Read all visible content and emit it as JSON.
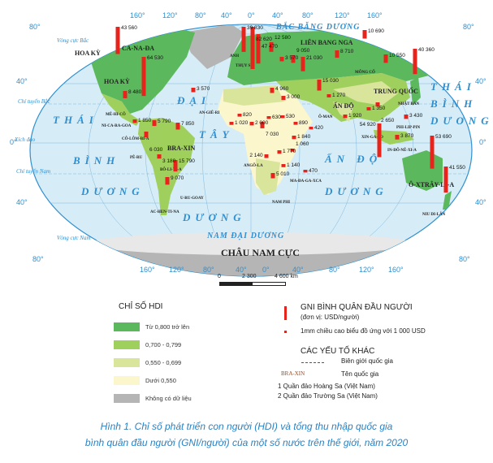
{
  "map": {
    "meridian_labels_top": [
      "160°",
      "120°",
      "80°",
      "40°",
      "0°",
      "40°",
      "80°",
      "120°",
      "160°"
    ],
    "meridian_labels_bottom": [
      "160°",
      "120°",
      "80°",
      "40°",
      "0°",
      "40°",
      "80°",
      "120°",
      "160°"
    ],
    "parallel_labels_left": [
      "80°",
      "40°",
      "0°",
      "40°",
      "80°"
    ],
    "parallel_labels_right": [
      "80°",
      "40°",
      "0°",
      "40°",
      "80°"
    ],
    "lines": {
      "arctic": "Vòng cực Bắc",
      "cancer": "Chí tuyến Bắc",
      "equator": "Xích đạo",
      "capricorn": "Chí tuyến Nam",
      "antarctic": "Vòng cực Nam"
    },
    "oceans": {
      "arctic": "BẮC BĂNG DƯƠNG",
      "pacific_left": [
        "THÁI",
        "BÌNH",
        "DƯƠNG"
      ],
      "pacific_right": [
        "THÁI",
        "BÌNH",
        "DƯƠNG"
      ],
      "atlantic": [
        "ĐẠI",
        "TÂY",
        "DƯƠNG"
      ],
      "indian": [
        "ẤN ĐỘ",
        "DƯƠNG"
      ],
      "southern": "NAM ĐẠI DƯƠNG",
      "antarctica": "CHÂU NAM CỰC"
    },
    "countries": [
      "HOA KỲ",
      "CA-NA-ĐA",
      "HOA KỲ",
      "MÊ-HI-CÔ",
      "NI-CA-RA-GOA",
      "CÔ-LÔM-BI-A",
      "PÊ-RU",
      "BÔ-LI-VI-A",
      "BRA-XIN",
      "U-RU-GOAY",
      "AC-HEN-TI-NA",
      "LIÊN BANG NGA",
      "MÔNG CỔ",
      "TRUNG QUỐC",
      "ẤN ĐỘ",
      "NHẬT BẢN",
      "PHI-LIP-PIN",
      "XIN-GA-PO",
      "IN-ĐÔ-NÊ-XI-A",
      "Ô-XTRÂY-LI-A",
      "NIU DI-LÂN",
      "AN-GIÊ-RI",
      "NAM PHI",
      "MA-ĐA-GA-XCA",
      "ANGÔ-LA",
      "Ô-MAN",
      "ANH",
      "THỤY SĨ"
    ],
    "gni_color": "#e8231c",
    "gni": [
      {
        "country": "CA-NA-ĐA",
        "label": "43 560",
        "value": 43560
      },
      {
        "country": "HOA KỲ",
        "label": "64 530",
        "value": 64530
      },
      {
        "country": "MÊ-HI-CÔ",
        "label": "8 480",
        "value": 8480
      },
      {
        "country": "NI-CA-RA-GOA",
        "label": "1 850",
        "value": 1850
      },
      {
        "country": "CÔ-LÔM-BI-A",
        "label": "5 790",
        "value": 5790
      },
      {
        "country": "BRA-XIN",
        "label": "7 850",
        "value": 7850
      },
      {
        "country": "PÊ-RU",
        "label": "6 030",
        "value": 6030
      },
      {
        "country": "BÔ-LI-VI-A",
        "label": "3 180",
        "value": 3180
      },
      {
        "country": "AC-HEN-TI-NA",
        "label": "9 070",
        "value": 9070
      },
      {
        "country": "U-RU-GOAY",
        "label": "15 790",
        "value": 15790
      },
      {
        "country": "ANH",
        "label": "39 830",
        "value": 39830
      },
      {
        "country": "",
        "label": "82 620",
        "value": 82620
      },
      {
        "country": "",
        "label": "47 470",
        "value": 47470
      },
      {
        "country": "",
        "label": "12 580",
        "value": 12580
      },
      {
        "country": "",
        "label": "3 570",
        "value": 3570
      },
      {
        "country": "",
        "label": "9 050",
        "value": 9050
      },
      {
        "country": "LIÊN BANG NGA",
        "label": "8 710",
        "value": 8710
      },
      {
        "country": "",
        "label": "10 690",
        "value": 10690
      },
      {
        "country": "TRUNG QUỐC",
        "label": "10 550",
        "value": 10550
      },
      {
        "country": "NHẬT BẢN",
        "label": "40 360",
        "value": 40360
      },
      {
        "country": "AN-GIÊ-RI",
        "label": "3 570",
        "value": 3570
      },
      {
        "country": "",
        "label": "4 960",
        "value": 4960
      },
      {
        "country": "",
        "label": "3 000",
        "value": 3000
      },
      {
        "country": "",
        "label": "21 030",
        "value": 21030
      },
      {
        "country": "Ô-MAN",
        "label": "15 030",
        "value": 15030
      },
      {
        "country": "",
        "label": "1 270",
        "value": 1270
      },
      {
        "country": "ẤN ĐỘ",
        "label": "1 920",
        "value": 1920
      },
      {
        "country": "",
        "label": "1 350",
        "value": 1350
      },
      {
        "country": "",
        "label": "2 650",
        "value": 2650
      },
      {
        "country": "XIN-GA-PO",
        "label": "54 920",
        "value": 54920
      },
      {
        "country": "IN-ĐÔ-NÊ-XI-A",
        "label": "3 870",
        "value": 3870
      },
      {
        "country": "PHI-LIP-PIN",
        "label": "3 430",
        "value": 3430
      },
      {
        "country": "Ô-XTRÂY-LI-A",
        "label": "53 690",
        "value": 53690
      },
      {
        "country": "NIU DI-LÂN",
        "label": "41 550",
        "value": 41550
      },
      {
        "country": "",
        "label": "820",
        "value": 820
      },
      {
        "country": "",
        "label": "630",
        "value": 630
      },
      {
        "country": "",
        "label": "530",
        "value": 530
      },
      {
        "country": "",
        "label": "1 020",
        "value": 1020
      },
      {
        "country": "",
        "label": "2 000",
        "value": 2000
      },
      {
        "country": "",
        "label": "7 030",
        "value": 7030
      },
      {
        "country": "",
        "label": "890",
        "value": 890
      },
      {
        "country": "",
        "label": "420",
        "value": 420
      },
      {
        "country": "",
        "label": "1 840",
        "value": 1840
      },
      {
        "country": "",
        "label": "1 770",
        "value": 1770
      },
      {
        "country": "",
        "label": "1 060",
        "value": 1060
      },
      {
        "country": "ANGÔ-LA",
        "label": "2 140",
        "value": 2140
      },
      {
        "country": "",
        "label": "1 140",
        "value": 1140
      },
      {
        "country": "NAM PHI",
        "label": "5 010",
        "value": 5010
      },
      {
        "country": "MA-ĐA-GA-XCA",
        "label": "470",
        "value": 470
      }
    ]
  },
  "scale_bar": {
    "labels": [
      "0",
      "2 300",
      "4 600 km"
    ]
  },
  "legend": {
    "hdi_title": "CHỈ SỐ HDI",
    "hdi": [
      {
        "label": "Từ 0,800 trở lên",
        "color": "#5cb85c"
      },
      {
        "label": "0,700 - 0,799",
        "color": "#9fcf5c"
      },
      {
        "label": "0,550 - 0,699",
        "color": "#d8e59a"
      },
      {
        "label": "Dưới 0,550",
        "color": "#fbf6cc"
      },
      {
        "label": "Không có dữ liệu",
        "color": "#b5b5b5"
      }
    ],
    "gni_title": "GNI BÌNH QUÂN ĐẦU NGƯỜI",
    "gni_unit": "(đơn vị: USD/người)",
    "gni_scale": "1mm chiều cao biểu đồ ứng với 1 000 USD",
    "other_title": "CÁC YẾU TỐ KHÁC",
    "border_label": "Biên giới quốc gia",
    "country_name_sample": "BRA-XIN",
    "country_name_label": "Tên quốc gia",
    "note1": "1 Quần đảo Hoàng Sa (Việt Nam)",
    "note2": "2 Quần đảo Trường Sa (Việt Nam)"
  },
  "caption": {
    "line1": "Hình 1. Chỉ số phát triển con người (HDI) và tổng thu nhập quốc gia",
    "line2": "bình quân đầu người (GNI/người) của một số nước trên thế giới, năm 2020"
  }
}
